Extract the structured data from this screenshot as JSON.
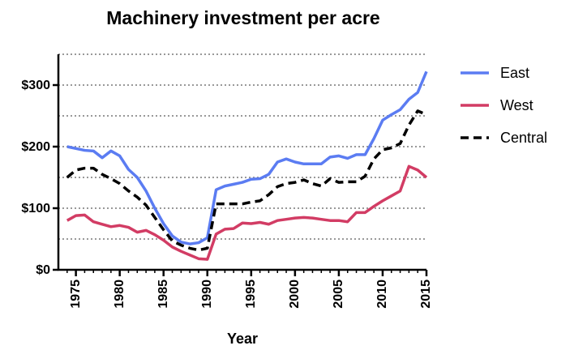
{
  "chart_data": {
    "type": "line",
    "title": "Machinery investment per acre",
    "x_label": "Year",
    "x": [
      1974,
      1975,
      1976,
      1977,
      1978,
      1979,
      1980,
      1981,
      1982,
      1983,
      1984,
      1985,
      1986,
      1987,
      1988,
      1989,
      1990,
      1991,
      1992,
      1993,
      1994,
      1995,
      1996,
      1997,
      1998,
      1999,
      2000,
      2001,
      2002,
      2003,
      2004,
      2005,
      2006,
      2007,
      2008,
      2009,
      2010,
      2011,
      2012,
      2013,
      2014,
      2015
    ],
    "series": [
      {
        "name": "East",
        "color": "#5b7cf2",
        "dash": false,
        "values": [
          200,
          197,
          194,
          193,
          182,
          193,
          185,
          163,
          150,
          128,
          100,
          75,
          55,
          45,
          42,
          44,
          52,
          130,
          136,
          139,
          142,
          147,
          148,
          155,
          175,
          180,
          175,
          172,
          172,
          172,
          183,
          185,
          181,
          187,
          187,
          213,
          243,
          252,
          260,
          277,
          288,
          322
        ]
      },
      {
        "name": "West",
        "color": "#d23c64",
        "dash": false,
        "values": [
          80,
          88,
          89,
          78,
          74,
          70,
          72,
          69,
          61,
          64,
          57,
          48,
          37,
          30,
          24,
          18,
          17,
          58,
          66,
          67,
          76,
          75,
          77,
          74,
          80,
          82,
          84,
          85,
          84,
          82,
          80,
          80,
          78,
          93,
          93,
          103,
          112,
          120,
          128,
          168,
          162,
          150
        ]
      },
      {
        "name": "Central",
        "color": "#000000",
        "dash": true,
        "values": [
          150,
          162,
          165,
          165,
          155,
          148,
          140,
          128,
          118,
          105,
          85,
          65,
          47,
          40,
          35,
          32,
          35,
          107,
          107,
          107,
          107,
          110,
          112,
          122,
          135,
          140,
          142,
          146,
          140,
          136,
          148,
          142,
          143,
          143,
          152,
          180,
          195,
          198,
          205,
          235,
          258,
          252
        ]
      }
    ],
    "xlim": [
      1973,
      2015
    ],
    "xticks": [
      1975,
      1980,
      1985,
      1990,
      1995,
      2000,
      2005,
      2010,
      2015
    ],
    "ylim": [
      0,
      350
    ],
    "yticks": [
      {
        "value": 0,
        "label": "$0"
      },
      {
        "value": 100,
        "label": "$100"
      },
      {
        "value": 200,
        "label": "$200"
      },
      {
        "value": 300,
        "label": "$300"
      }
    ],
    "grid_lines": [
      50,
      100,
      150,
      200,
      250,
      300,
      350
    ],
    "grid": true,
    "legend": "right"
  }
}
